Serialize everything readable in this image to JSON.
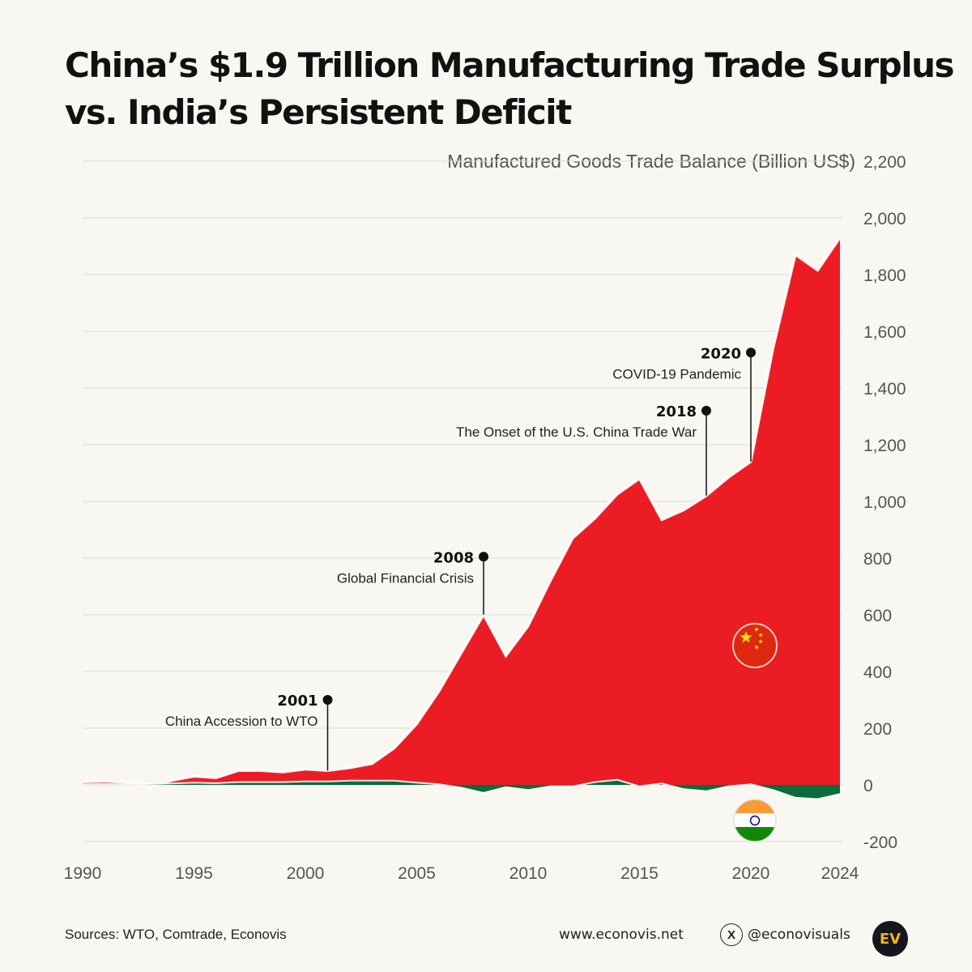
{
  "header": {
    "title_line1": "China’s $1.9 Trillion Manufacturing Trade Surplus",
    "title_line2": "vs. India’s Persistent Deficit"
  },
  "chart_data": {
    "type": "area",
    "title": "China’s $1.9 Trillion Manufacturing Trade Surplus vs. India’s Persistent Deficit",
    "ylabel": "Manufactured Goods Trade Balance (Billion US$)",
    "xlabel": "",
    "xlim": [
      1990,
      2024
    ],
    "ylim": [
      -200,
      2200
    ],
    "y_ticks": [
      -200,
      0,
      200,
      400,
      600,
      800,
      1000,
      1200,
      1400,
      1600,
      1800,
      2000,
      2200
    ],
    "y_tick_labels": [
      "-200",
      "0",
      "200",
      "400",
      "600",
      "800",
      "1,000",
      "1,200",
      "1,400",
      "1,600",
      "1,800",
      "2,000",
      "2,200"
    ],
    "x_ticks": [
      1990,
      1995,
      2000,
      2005,
      2010,
      2015,
      2020,
      2024
    ],
    "grid": true,
    "x": [
      1990,
      1991,
      1992,
      1993,
      1994,
      1995,
      1996,
      1997,
      1998,
      1999,
      2000,
      2001,
      2002,
      2003,
      2004,
      2005,
      2006,
      2007,
      2008,
      2009,
      2010,
      2011,
      2012,
      2013,
      2014,
      2015,
      2016,
      2017,
      2018,
      2019,
      2020,
      2021,
      2022,
      2023,
      2024
    ],
    "series": [
      {
        "flag": "china-flag",
        "color": "#ec1c24",
        "values": [
          10,
          12,
          8,
          -5,
          15,
          30,
          25,
          50,
          50,
          45,
          55,
          50,
          60,
          75,
          130,
          215,
          330,
          465,
          600,
          455,
          560,
          720,
          870,
          940,
          1025,
          1080,
          935,
          970,
          1020,
          1085,
          1140,
          1540,
          1870,
          1815,
          1930
        ]
      },
      {
        "flag": "india-flag",
        "color": "#0b6b3a",
        "values": [
          2,
          3,
          2,
          3,
          5,
          8,
          6,
          10,
          10,
          10,
          12,
          12,
          15,
          15,
          15,
          8,
          2,
          -10,
          -28,
          -8,
          -18,
          -5,
          -5,
          10,
          18,
          -5,
          5,
          -15,
          -22,
          -5,
          2,
          -18,
          -45,
          -50,
          -32
        ]
      }
    ],
    "annotations": [
      {
        "year": "2001",
        "label": "China Accession to WTO",
        "x": 2001,
        "y_point": 50,
        "y_label": 300
      },
      {
        "year": "2008",
        "label": "Global Financial Crisis",
        "x": 2008,
        "y_point": 600,
        "y_label": 805
      },
      {
        "year": "2018",
        "label": "The Onset of the U.S. China Trade War",
        "x": 2018,
        "y_point": 1020,
        "y_label": 1320
      },
      {
        "year": "2020",
        "label": "COVID-19 Pandemic",
        "x": 2020,
        "y_point": 1140,
        "y_label": 1525
      }
    ]
  },
  "footer": {
    "sources": "Sources: WTO, Comtrade, Econovis",
    "website": "www.econovis.net",
    "handle": "@econovisuals",
    "x_glyph": "X",
    "logo_text": "EV"
  },
  "colors": {
    "china": "#ec1c24",
    "india": "#0b6b3a",
    "background": "#f8f7f2"
  }
}
